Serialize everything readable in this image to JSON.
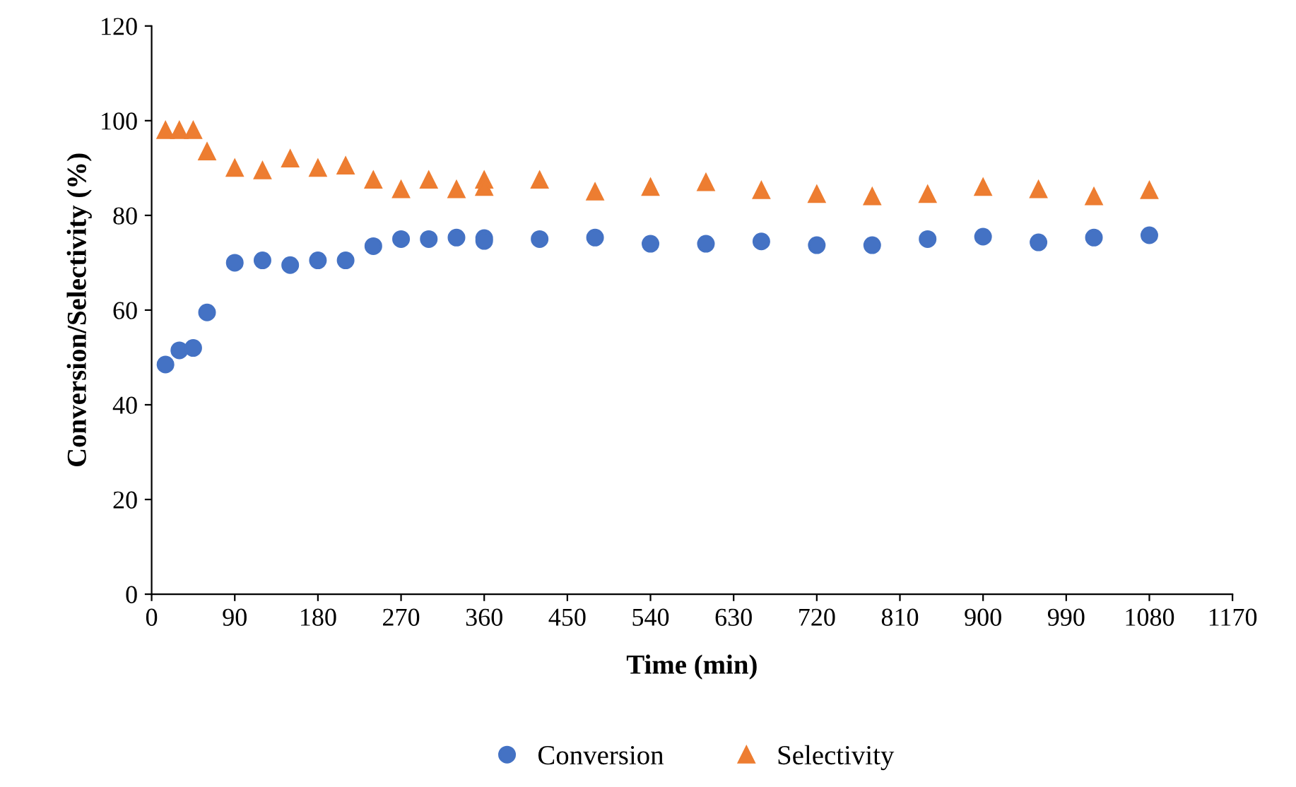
{
  "chart_data": {
    "type": "scatter",
    "xlabel": "Time (min)",
    "ylabel": "Conversion/Selectivity (%)",
    "xlim": [
      0,
      1170
    ],
    "xticks": [
      0,
      90,
      180,
      270,
      360,
      450,
      540,
      630,
      720,
      810,
      900,
      990,
      1080,
      1170
    ],
    "ylim": [
      0,
      120
    ],
    "yticks": [
      0,
      20,
      40,
      60,
      80,
      100,
      120
    ],
    "grid": false,
    "legend": "bottom",
    "series": [
      {
        "name": "Conversion",
        "color": "#4472c4",
        "marker": "circle",
        "x": [
          15,
          30,
          45,
          60,
          90,
          120,
          150,
          180,
          210,
          240,
          270,
          300,
          330,
          360,
          360,
          420,
          480,
          540,
          600,
          660,
          720,
          780,
          840,
          900,
          960,
          1020,
          1080
        ],
        "values": [
          48.5,
          51.5,
          52,
          59.5,
          70,
          70.5,
          69.5,
          70.5,
          70.5,
          73.5,
          75,
          75,
          75.3,
          75.2,
          74.6,
          75,
          75.3,
          74,
          74,
          74.5,
          73.7,
          73.7,
          75,
          75.5,
          74.3,
          75.3,
          75.8
        ]
      },
      {
        "name": "Selectivity",
        "color": "#ed7d31",
        "marker": "triangle",
        "x": [
          15,
          30,
          45,
          60,
          90,
          120,
          150,
          180,
          210,
          240,
          270,
          300,
          330,
          360,
          360,
          420,
          480,
          540,
          600,
          660,
          720,
          780,
          840,
          900,
          960,
          1020,
          1080
        ],
        "values": [
          98,
          98,
          98,
          93.5,
          90,
          89.5,
          92,
          90,
          90.5,
          87.5,
          85.5,
          87.5,
          85.5,
          87.5,
          86,
          87.5,
          85,
          86,
          87,
          85.3,
          84.5,
          84,
          84.5,
          86,
          85.5,
          84,
          85.3
        ]
      }
    ]
  }
}
